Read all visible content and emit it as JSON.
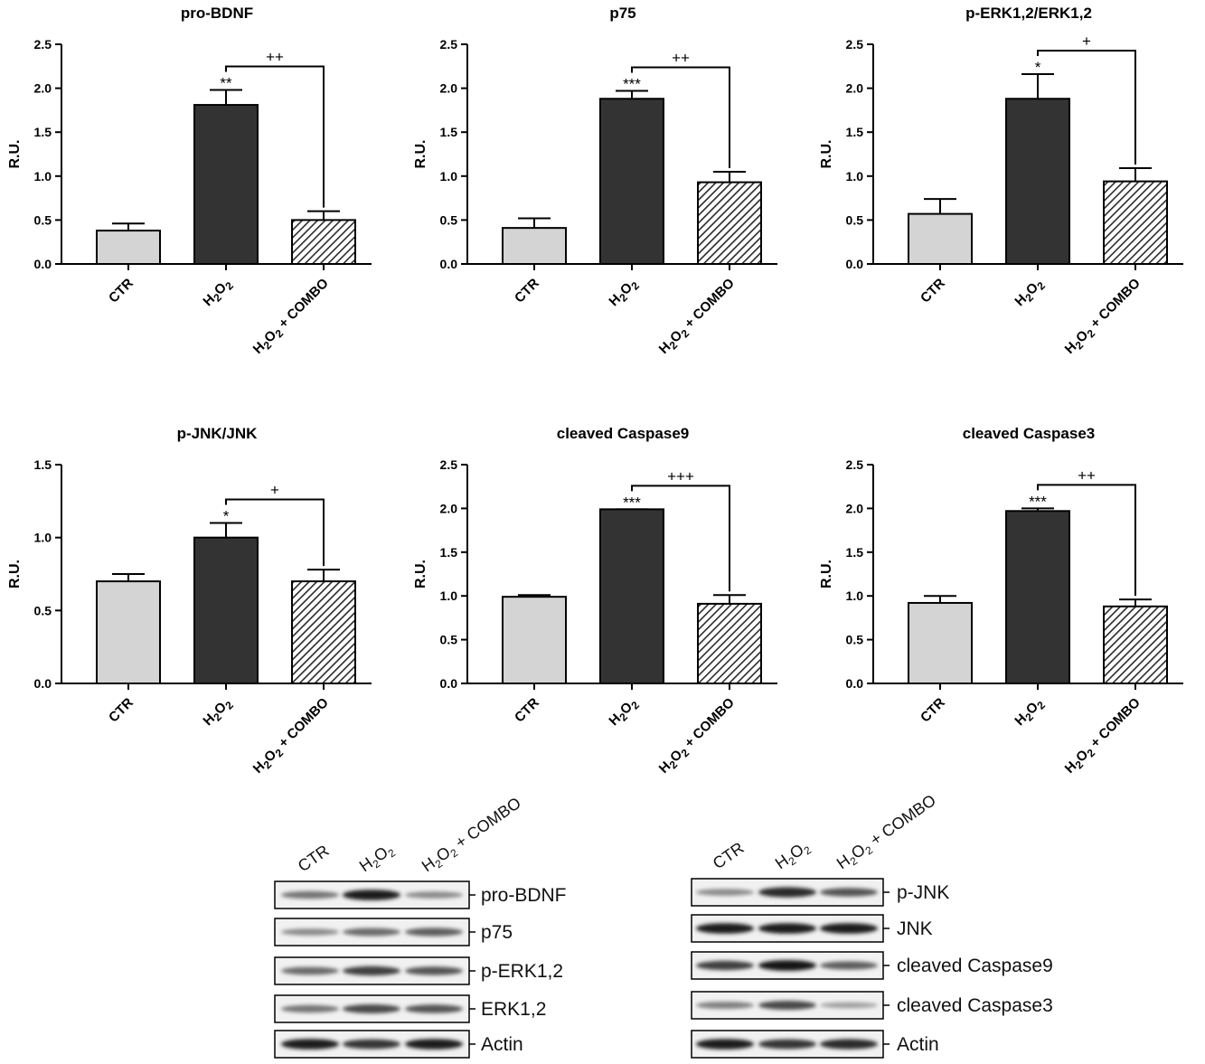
{
  "chart_data": [
    {
      "type": "bar",
      "title": "pro-BDNF",
      "ylabel": "R.U.",
      "ylim": [
        0,
        2.5
      ],
      "yticks": [
        "0.0",
        "0.5",
        "1.0",
        "1.5",
        "2.0",
        "2.5"
      ],
      "categories": [
        "CTR",
        "H2O2",
        "H2O2 + COMBO"
      ],
      "values": [
        0.38,
        1.81,
        0.5
      ],
      "errors": [
        0.08,
        0.17,
        0.1
      ],
      "significance": [
        {
          "index": 1,
          "label": "**"
        }
      ],
      "comparison": {
        "from": 1,
        "to": 2,
        "label": "++"
      }
    },
    {
      "type": "bar",
      "title": "p75",
      "ylabel": "R.U.",
      "ylim": [
        0,
        2.5
      ],
      "yticks": [
        "0.0",
        "0.5",
        "1.0",
        "1.5",
        "2.0",
        "2.5"
      ],
      "categories": [
        "CTR",
        "H2O2",
        "H2O2 + COMBO"
      ],
      "values": [
        0.41,
        1.88,
        0.93
      ],
      "errors": [
        0.11,
        0.09,
        0.12
      ],
      "significance": [
        {
          "index": 1,
          "label": "***"
        }
      ],
      "comparison": {
        "from": 1,
        "to": 2,
        "label": "++"
      }
    },
    {
      "type": "bar",
      "title": "p-ERK1,2/ERK1,2",
      "ylabel": "R.U.",
      "ylim": [
        0,
        2.5
      ],
      "yticks": [
        "0.0",
        "0.5",
        "1.0",
        "1.5",
        "2.0",
        "2.5"
      ],
      "categories": [
        "CTR",
        "H2O2",
        "H2O2 + COMBO"
      ],
      "values": [
        0.57,
        1.88,
        0.94
      ],
      "errors": [
        0.17,
        0.28,
        0.15
      ],
      "significance": [
        {
          "index": 1,
          "label": "*"
        }
      ],
      "comparison": {
        "from": 1,
        "to": 2,
        "label": "+"
      }
    },
    {
      "type": "bar",
      "title": "p-JNK/JNK",
      "ylabel": "R.U.",
      "ylim": [
        0,
        1.5
      ],
      "yticks": [
        "0.0",
        "0.5",
        "1.0",
        "1.5"
      ],
      "categories": [
        "CTR",
        "H2O2",
        "H2O2 + COMBO"
      ],
      "values": [
        0.7,
        1.0,
        0.7
      ],
      "errors": [
        0.05,
        0.1,
        0.08
      ],
      "significance": [
        {
          "index": 1,
          "label": "*"
        }
      ],
      "comparison": {
        "from": 1,
        "to": 2,
        "label": "+"
      }
    },
    {
      "type": "bar",
      "title": "cleaved Caspase9",
      "ylabel": "R.U.",
      "ylim": [
        0,
        2.5
      ],
      "yticks": [
        "0.0",
        "0.5",
        "1.0",
        "1.5",
        "2.0",
        "2.5"
      ],
      "categories": [
        "CTR",
        "H2O2",
        "H2O2 + COMBO"
      ],
      "values": [
        0.99,
        1.99,
        0.91
      ],
      "errors": [
        0.02,
        0.0,
        0.1
      ],
      "significance": [
        {
          "index": 1,
          "label": "***"
        }
      ],
      "comparison": {
        "from": 1,
        "to": 2,
        "label": "+++"
      }
    },
    {
      "type": "bar",
      "title": "cleaved Caspase3",
      "ylabel": "R.U.",
      "ylim": [
        0,
        2.5
      ],
      "yticks": [
        "0.0",
        "0.5",
        "1.0",
        "1.5",
        "2.0",
        "2.5"
      ],
      "categories": [
        "CTR",
        "H2O2",
        "H2O2 + COMBO"
      ],
      "values": [
        0.92,
        1.97,
        0.88
      ],
      "errors": [
        0.08,
        0.03,
        0.08
      ],
      "significance": [
        {
          "index": 1,
          "label": "***"
        }
      ],
      "comparison": {
        "from": 1,
        "to": 2,
        "label": "++"
      }
    }
  ],
  "bar_colors": [
    "#d4d4d4",
    "#333333",
    "hatched"
  ],
  "blots": [
    {
      "lanes": [
        "CTR",
        "H2O2",
        "H2O2 + COMBO"
      ],
      "rows": [
        {
          "label": "pro-BDNF",
          "intensity": [
            0.55,
            0.95,
            0.45
          ]
        },
        {
          "label": "p75",
          "intensity": [
            0.45,
            0.6,
            0.65
          ]
        },
        {
          "label": "p-ERK1,2",
          "intensity": [
            0.6,
            0.8,
            0.7
          ]
        },
        {
          "label": "ERK1,2",
          "intensity": [
            0.55,
            0.75,
            0.7
          ]
        },
        {
          "label": "Actin",
          "intensity": [
            0.95,
            0.85,
            0.95
          ]
        }
      ]
    },
    {
      "lanes": [
        "CTR",
        "H2O2",
        "H2O2 + COMBO"
      ],
      "rows": [
        {
          "label": "p-JNK",
          "intensity": [
            0.45,
            0.9,
            0.7
          ]
        },
        {
          "label": "JNK",
          "intensity": [
            0.95,
            0.95,
            0.95
          ]
        },
        {
          "label": "cleaved Caspase9",
          "intensity": [
            0.8,
            0.98,
            0.65
          ]
        },
        {
          "label": "cleaved Caspase3",
          "intensity": [
            0.5,
            0.75,
            0.35
          ]
        },
        {
          "label": "Actin",
          "intensity": [
            0.95,
            0.85,
            0.9
          ]
        }
      ]
    }
  ]
}
